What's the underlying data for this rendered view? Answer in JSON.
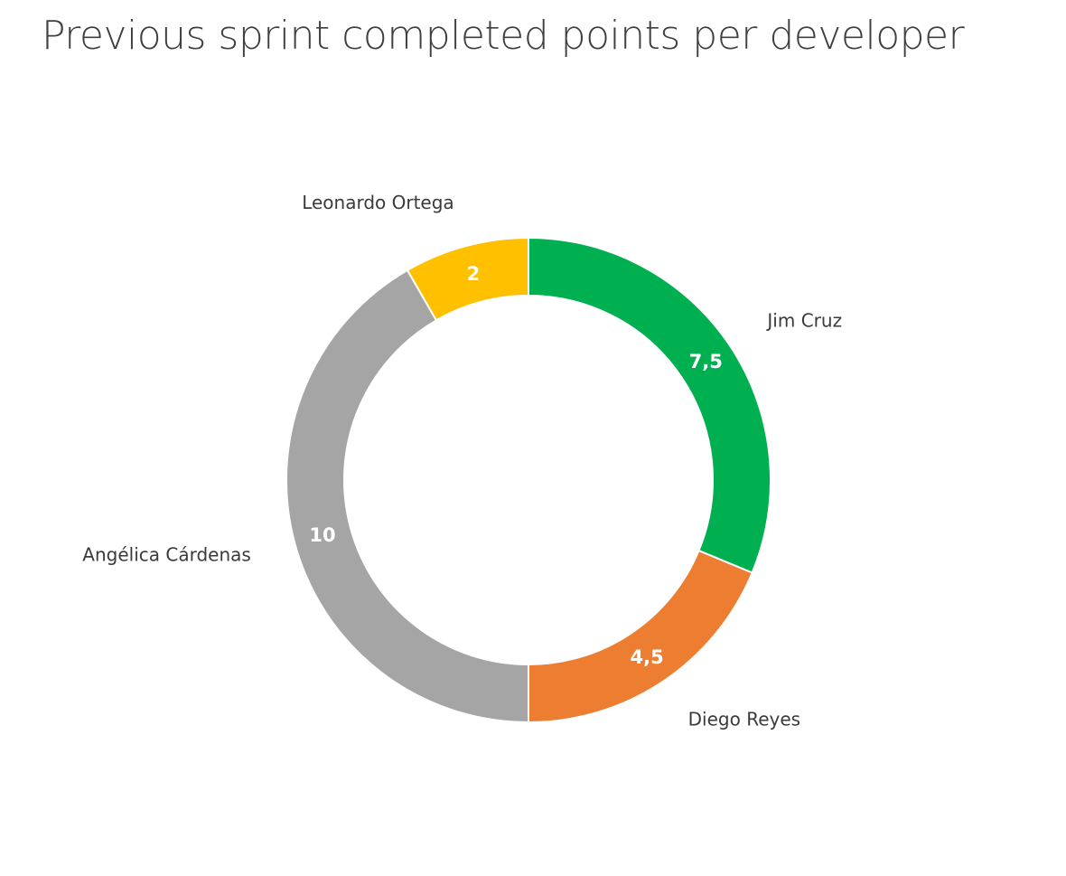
{
  "title": "Previous sprint completed points per developer",
  "chart_data": {
    "type": "pie",
    "variant": "donut",
    "title": "Previous sprint completed points per developer",
    "categories": [
      "Jim Cruz",
      "Diego Reyes",
      "Angélica Cárdenas",
      "Leonardo Ortega"
    ],
    "values": [
      7.5,
      4.5,
      10,
      2
    ],
    "value_labels": [
      "7,5",
      "4,5",
      "10",
      "2"
    ],
    "colors": [
      "#00b050",
      "#ed7d31",
      "#a5a5a5",
      "#ffc000"
    ],
    "start_angle": "12 o'clock",
    "direction": "clockwise",
    "legend": "none"
  }
}
